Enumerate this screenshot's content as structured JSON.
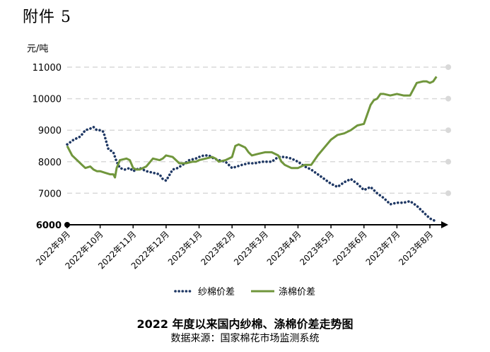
{
  "attachment_label": "附件 5",
  "chart_data": {
    "type": "line",
    "title": "2022 年度以来国内纱棉、涤棉价差走势图",
    "source": "数据来源：国家棉花市场监测系统",
    "ylabel": "元/吨",
    "ylim": [
      6000,
      11000
    ],
    "yticks": [
      6000,
      7000,
      8000,
      9000,
      10000,
      11000
    ],
    "ytick_labels": [
      "6000",
      "7000",
      "8000",
      "9000",
      "10000",
      "11000"
    ],
    "x_range": [
      0,
      11.3
    ],
    "xticks": [
      0,
      1,
      2,
      3,
      4,
      5,
      6,
      7,
      8,
      9,
      10,
      11
    ],
    "xtick_labels": [
      "2022年9月",
      "2022年10月",
      "2022年11月",
      "2022年12月",
      "2023年1月",
      "2023年2月",
      "2023年3月",
      "2023年4月",
      "2023年5月",
      "2023年6月",
      "2023年7月",
      "2023年8月"
    ],
    "grid": true,
    "legend_position": "bottom",
    "series": [
      {
        "name": "纱棉价差",
        "style": "dotted",
        "color": "#1f3864",
        "x": [
          0,
          0.2,
          0.4,
          0.55,
          0.7,
          0.8,
          0.9,
          1.0,
          1.1,
          1.25,
          1.4,
          1.5,
          1.6,
          1.75,
          1.9,
          2.0,
          2.2,
          2.4,
          2.6,
          2.8,
          2.9,
          3.0,
          3.2,
          3.35,
          3.5,
          3.7,
          3.9,
          4.0,
          4.15,
          4.3,
          4.45,
          4.6,
          4.8,
          5.0,
          5.15,
          5.3,
          5.5,
          5.7,
          5.9,
          6.0,
          6.2,
          6.4,
          6.6,
          6.8,
          7.0,
          7.2,
          7.4,
          7.6,
          7.8,
          8.0,
          8.2,
          8.4,
          8.6,
          8.8,
          9.0,
          9.2,
          9.4,
          9.6,
          9.8,
          10.0,
          10.2,
          10.4,
          10.6,
          10.8,
          11.0,
          11.1,
          11.2
        ],
        "y": [
          8550,
          8700,
          8800,
          9000,
          9050,
          9100,
          9000,
          9000,
          8950,
          8400,
          8300,
          8000,
          7800,
          7750,
          7800,
          7700,
          7800,
          7700,
          7650,
          7600,
          7450,
          7400,
          7750,
          7800,
          7900,
          8050,
          8100,
          8150,
          8200,
          8200,
          8100,
          8050,
          8000,
          7800,
          7850,
          7900,
          7950,
          7950,
          8000,
          8000,
          8000,
          8150,
          8150,
          8100,
          8000,
          7850,
          7750,
          7600,
          7450,
          7300,
          7200,
          7350,
          7450,
          7300,
          7100,
          7200,
          7000,
          6850,
          6650,
          6700,
          6700,
          6750,
          6600,
          6400,
          6200,
          6150,
          6100
        ]
      },
      {
        "name": "涤棉价差",
        "style": "solid",
        "color": "#70963c",
        "x": [
          0,
          0.15,
          0.3,
          0.45,
          0.55,
          0.7,
          0.8,
          0.9,
          1.0,
          1.15,
          1.3,
          1.4,
          1.45,
          1.5,
          1.6,
          1.8,
          1.9,
          2.0,
          2.1,
          2.2,
          2.4,
          2.6,
          2.8,
          2.9,
          3.0,
          3.2,
          3.4,
          3.6,
          3.8,
          3.9,
          4.0,
          4.2,
          4.4,
          4.5,
          4.6,
          4.8,
          5.0,
          5.1,
          5.2,
          5.3,
          5.4,
          5.5,
          5.6,
          5.8,
          6.0,
          6.2,
          6.4,
          6.5,
          6.6,
          6.8,
          7.0,
          7.2,
          7.4,
          7.6,
          7.8,
          8.0,
          8.2,
          8.4,
          8.6,
          8.8,
          9.0,
          9.2,
          9.3,
          9.4,
          9.5,
          9.6,
          9.8,
          10.0,
          10.2,
          10.4,
          10.6,
          10.8,
          10.9,
          11.0,
          11.1,
          11.2
        ],
        "y": [
          8500,
          8200,
          8050,
          7900,
          7800,
          7850,
          7750,
          7700,
          7700,
          7650,
          7600,
          7600,
          7500,
          7800,
          8050,
          8100,
          8050,
          7800,
          7750,
          7750,
          7850,
          8100,
          8050,
          8100,
          8200,
          8150,
          7950,
          7950,
          8000,
          8000,
          8050,
          8100,
          8150,
          8100,
          8000,
          8050,
          8150,
          8500,
          8550,
          8500,
          8450,
          8300,
          8200,
          8250,
          8300,
          8300,
          8200,
          8000,
          7900,
          7800,
          7800,
          7900,
          7900,
          8200,
          8450,
          8700,
          8850,
          8900,
          9000,
          9150,
          9200,
          9800,
          9950,
          10000,
          10150,
          10150,
          10100,
          10150,
          10100,
          10100,
          10500,
          10550,
          10550,
          10500,
          10550,
          10700
        ]
      }
    ]
  }
}
